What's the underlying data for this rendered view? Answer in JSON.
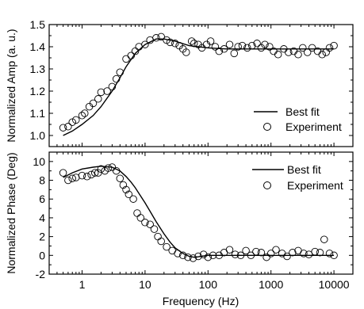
{
  "chart_data": [
    {
      "type": "scatter",
      "xscale": "log",
      "xlim": [
        0.3,
        20000
      ],
      "ylim": [
        0.95,
        1.5
      ],
      "yticks": [
        1.0,
        1.1,
        1.2,
        1.3,
        1.4,
        1.5
      ],
      "ytick_labels": [
        "1.0",
        "1.1",
        "1.2",
        "1.3",
        "1.4",
        "1.5"
      ],
      "xticks": [
        1,
        10,
        100,
        1000,
        10000
      ],
      "xtick_labels": [],
      "ylabel": "Normalized Amp (a. u.)",
      "xlabel": "",
      "grid": false,
      "legend_position": "bottom-right",
      "series": [
        {
          "name": "Best fit",
          "kind": "line",
          "x": [
            0.5,
            0.7,
            1,
            1.5,
            2,
            3,
            4,
            5,
            7,
            10,
            15,
            20,
            30,
            50,
            70,
            100,
            200,
            500,
            1000,
            3000,
            10000
          ],
          "y": [
            1.0,
            1.02,
            1.05,
            1.09,
            1.13,
            1.2,
            1.26,
            1.31,
            1.37,
            1.41,
            1.435,
            1.435,
            1.425,
            1.405,
            1.4,
            1.395,
            1.39,
            1.39,
            1.39,
            1.39,
            1.39
          ]
        },
        {
          "name": "Experiment",
          "kind": "markers",
          "x": [
            0.5,
            0.6,
            0.7,
            0.8,
            1.0,
            1.1,
            1.3,
            1.5,
            1.8,
            2.0,
            2.5,
            3.0,
            3.5,
            4.0,
            5.0,
            6.0,
            7.0,
            8.0,
            10,
            12,
            15,
            18,
            22,
            25,
            30,
            35,
            40,
            45,
            55,
            60,
            70,
            80,
            95,
            110,
            130,
            150,
            180,
            220,
            260,
            300,
            350,
            420,
            500,
            600,
            700,
            800,
            950,
            1100,
            1300,
            1600,
            1900,
            2300,
            2700,
            3200,
            3800,
            4500,
            5500,
            6500,
            7500,
            8500,
            10000
          ],
          "y": [
            1.035,
            1.04,
            1.06,
            1.07,
            1.09,
            1.1,
            1.13,
            1.145,
            1.165,
            1.195,
            1.2,
            1.22,
            1.255,
            1.285,
            1.345,
            1.36,
            1.38,
            1.4,
            1.41,
            1.43,
            1.44,
            1.445,
            1.43,
            1.42,
            1.415,
            1.405,
            1.39,
            1.375,
            1.425,
            1.415,
            1.41,
            1.395,
            1.41,
            1.425,
            1.4,
            1.38,
            1.39,
            1.41,
            1.37,
            1.4,
            1.405,
            1.395,
            1.405,
            1.415,
            1.395,
            1.41,
            1.4,
            1.38,
            1.365,
            1.39,
            1.375,
            1.38,
            1.365,
            1.395,
            1.375,
            1.395,
            1.38,
            1.365,
            1.375,
            1.395,
            1.405
          ]
        }
      ]
    },
    {
      "type": "scatter",
      "xscale": "log",
      "xlim": [
        0.3,
        20000
      ],
      "ylim": [
        -2,
        11
      ],
      "yticks": [
        -2,
        0,
        2,
        4,
        6,
        8,
        10
      ],
      "ytick_labels": [
        "-2",
        "0",
        "2",
        "4",
        "6",
        "8",
        "10"
      ],
      "xticks": [
        1,
        10,
        100,
        1000,
        10000
      ],
      "xtick_labels": [
        "1",
        "10",
        "100",
        "1000",
        "10000"
      ],
      "ylabel": "Normalized Phase (Deg)",
      "xlabel": "Frequency (Hz)",
      "grid": false,
      "legend_position": "top-right",
      "series": [
        {
          "name": "Best fit",
          "kind": "line",
          "x": [
            0.5,
            0.7,
            1,
            1.5,
            2,
            3,
            4,
            5,
            6,
            7,
            8,
            10,
            12,
            15,
            20,
            25,
            30,
            40,
            50,
            60,
            70,
            100,
            200,
            500,
            1000,
            3000,
            10000
          ],
          "y": [
            8.3,
            8.8,
            9.2,
            9.4,
            9.5,
            9.4,
            9.0,
            8.4,
            7.8,
            7.2,
            6.6,
            5.6,
            4.7,
            3.6,
            2.3,
            1.4,
            0.8,
            0.2,
            -0.1,
            -0.2,
            -0.15,
            0.0,
            0.0,
            0.0,
            0.0,
            0.0,
            0.0
          ]
        },
        {
          "name": "Experiment",
          "kind": "markers",
          "x": [
            0.5,
            0.6,
            0.7,
            0.8,
            1.0,
            1.2,
            1.4,
            1.6,
            1.8,
            2.0,
            2.3,
            2.6,
            3.0,
            3.5,
            4.0,
            4.5,
            5.0,
            5.5,
            6.5,
            7.5,
            8.5,
            10,
            12,
            14,
            16,
            18,
            22,
            27,
            33,
            40,
            48,
            58,
            70,
            85,
            100,
            120,
            150,
            180,
            220,
            270,
            330,
            400,
            480,
            580,
            700,
            850,
            1000,
            1200,
            1500,
            1800,
            2200,
            2700,
            3300,
            4000,
            5000,
            6000,
            7000,
            8500,
            10000
          ],
          "y": [
            8.8,
            8.0,
            8.2,
            8.3,
            8.5,
            8.4,
            8.6,
            8.8,
            8.8,
            9.2,
            9.0,
            9.3,
            9.4,
            9.0,
            8.2,
            7.5,
            7.0,
            6.5,
            6.0,
            4.5,
            4.0,
            3.5,
            3.3,
            2.8,
            2.0,
            1.5,
            0.9,
            0.5,
            0.2,
            0.0,
            -0.2,
            -0.3,
            -0.1,
            0.1,
            -0.2,
            0.0,
            0.0,
            0.3,
            0.6,
            0.1,
            0.0,
            0.5,
            0.0,
            0.4,
            0.3,
            -0.2,
            0.2,
            0.6,
            0.2,
            -0.1,
            0.3,
            0.5,
            0.2,
            0.1,
            0.4,
            0.3,
            1.7,
            0.2,
            0.0
          ]
        }
      ]
    }
  ]
}
